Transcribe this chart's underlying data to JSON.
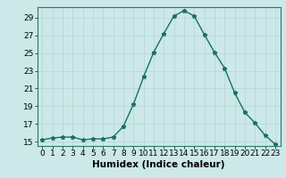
{
  "x": [
    0,
    1,
    2,
    3,
    4,
    5,
    6,
    7,
    8,
    9,
    10,
    11,
    12,
    13,
    14,
    15,
    16,
    17,
    18,
    19,
    20,
    21,
    22,
    23
  ],
  "y": [
    15.2,
    15.4,
    15.5,
    15.5,
    15.2,
    15.3,
    15.3,
    15.5,
    16.7,
    19.2,
    22.3,
    25.1,
    27.2,
    29.2,
    29.8,
    29.2,
    27.1,
    25.1,
    23.3,
    20.5,
    18.3,
    17.1,
    15.7,
    14.7
  ],
  "line_color": "#1a7060",
  "marker": "*",
  "marker_size": 3.5,
  "background_color": "#cce8e8",
  "grid_color": "#b8d8d8",
  "xlabel": "Humidex (Indice chaleur)",
  "ylim": [
    14.5,
    30.2
  ],
  "xlim": [
    -0.5,
    23.5
  ],
  "yticks": [
    15,
    17,
    19,
    21,
    23,
    25,
    27,
    29
  ],
  "xticks": [
    0,
    1,
    2,
    3,
    4,
    5,
    6,
    7,
    8,
    9,
    10,
    11,
    12,
    13,
    14,
    15,
    16,
    17,
    18,
    19,
    20,
    21,
    22,
    23
  ],
  "xlabel_fontsize": 7.5,
  "tick_fontsize": 6.5,
  "line_width": 1.0
}
